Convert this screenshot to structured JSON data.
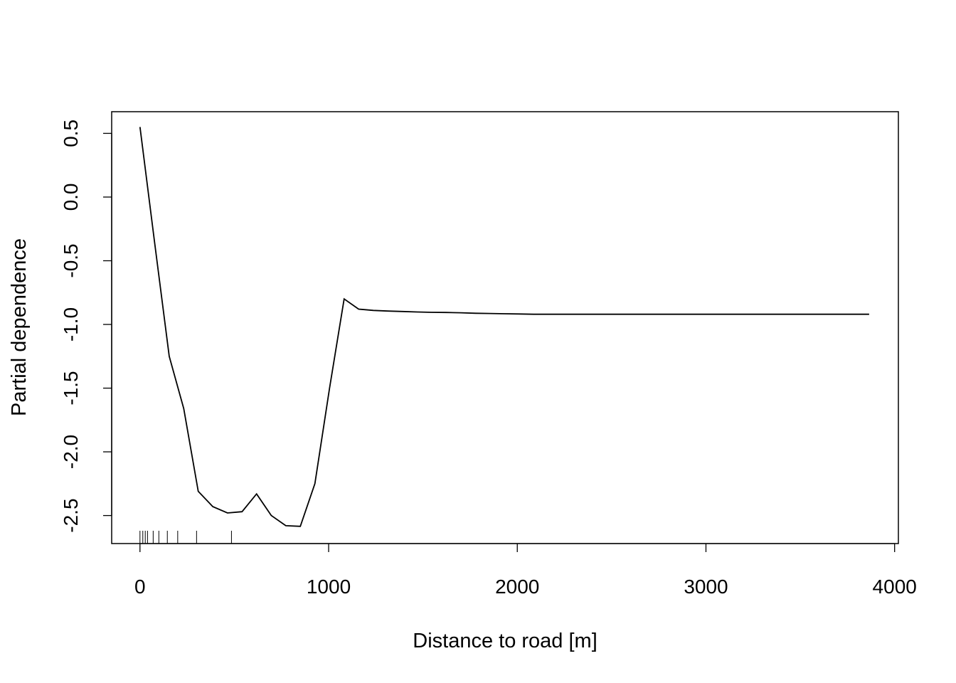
{
  "chart_data": {
    "type": "line",
    "title": "",
    "xlabel": "Distance to road [m]",
    "ylabel": "Partial dependence",
    "xlim": [
      -150,
      4020
    ],
    "ylim": [
      -2.72,
      0.67
    ],
    "x_ticks": [
      0,
      1000,
      2000,
      3000,
      4000
    ],
    "x_tick_labels": [
      "0",
      "1000",
      "2000",
      "3000",
      "4000"
    ],
    "y_ticks": [
      -2.5,
      -2.0,
      -1.5,
      -1.0,
      -0.5,
      0.0,
      0.5
    ],
    "y_tick_labels": [
      "-2.5",
      "-2.0",
      "-1.5",
      "-1.0",
      "-0.5",
      "0.0",
      "0.5"
    ],
    "grid": false,
    "legend": "none",
    "series": [
      {
        "x": [
          0,
          77,
          155,
          232,
          309,
          386,
          464,
          541,
          618,
          696,
          773,
          850,
          927,
          1005,
          1082,
          1159,
          1237,
          1314,
          1391,
          1469,
          1546,
          1623,
          1700,
          1778,
          1855,
          1932,
          2010,
          2087,
          2164,
          2242,
          2319,
          2396,
          2473,
          2551,
          2628,
          2705,
          2783,
          2860,
          2937,
          3014,
          3092,
          3169,
          3246,
          3324,
          3401,
          3478,
          3556,
          3633,
          3710,
          3787,
          3865
        ],
        "y": [
          0.55,
          -0.35,
          -1.25,
          -1.66,
          -2.31,
          -2.43,
          -2.48,
          -2.47,
          -2.33,
          -2.5,
          -2.58,
          -2.585,
          -2.25,
          -1.5,
          -0.8,
          -0.88,
          -0.89,
          -0.895,
          -0.898,
          -0.902,
          -0.905,
          -0.906,
          -0.908,
          -0.912,
          -0.914,
          -0.916,
          -0.918,
          -0.92,
          -0.92,
          -0.92,
          -0.92,
          -0.92,
          -0.92,
          -0.92,
          -0.92,
          -0.92,
          -0.92,
          -0.92,
          -0.92,
          -0.92,
          -0.92,
          -0.92,
          -0.92,
          -0.92,
          -0.92,
          -0.92,
          -0.92,
          -0.92,
          -0.92,
          -0.92,
          -0.92
        ]
      }
    ],
    "rug": [
      0,
      15,
      28,
      40,
      70,
      100,
      145,
      200,
      300,
      485
    ]
  }
}
